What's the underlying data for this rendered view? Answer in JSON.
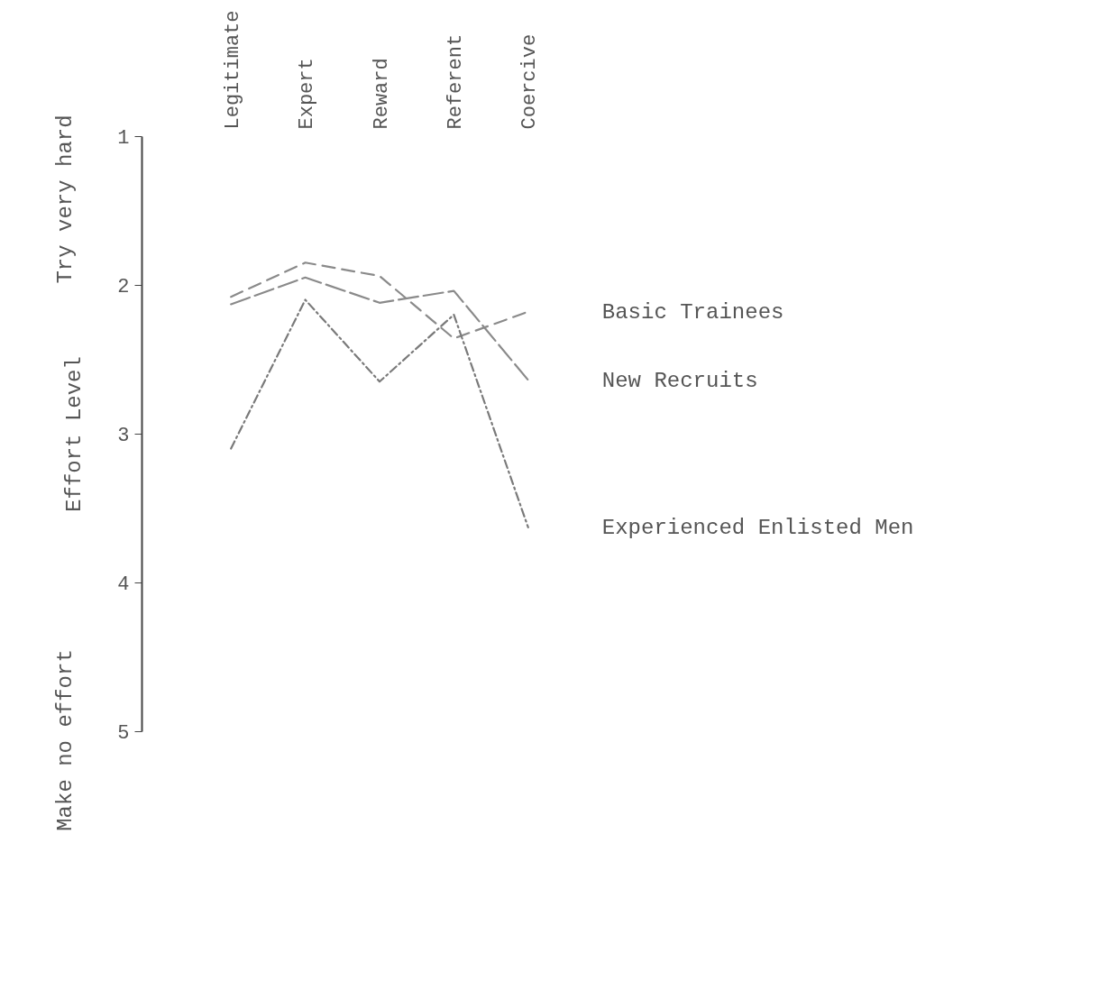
{
  "chart_data": {
    "type": "line",
    "ylabel": "Effort Level",
    "categories": [
      "Legitimate",
      "Expert",
      "Reward",
      "Referent",
      "Coercive"
    ],
    "series": [
      {
        "name": "Basic Trainees",
        "color": "#8a8a8a",
        "line_style": "dashed",
        "values": [
          2.08,
          1.85,
          1.94,
          2.36,
          2.18
        ]
      },
      {
        "name": "New Recruits",
        "color": "#8a8a8a",
        "line_style": "dashed",
        "values": [
          2.13,
          1.95,
          2.12,
          2.04,
          2.64
        ]
      },
      {
        "name": "Experienced Enlisted Men",
        "color": "#7a7a7a",
        "line_style": "dashed",
        "values": [
          3.1,
          2.1,
          2.65,
          2.2,
          3.63
        ]
      }
    ],
    "ylim": [
      5,
      1
    ],
    "yticks": [
      1,
      2,
      3,
      4,
      5
    ],
    "grid": false,
    "annotations": [
      "Try very hard",
      "Make no effort"
    ]
  }
}
